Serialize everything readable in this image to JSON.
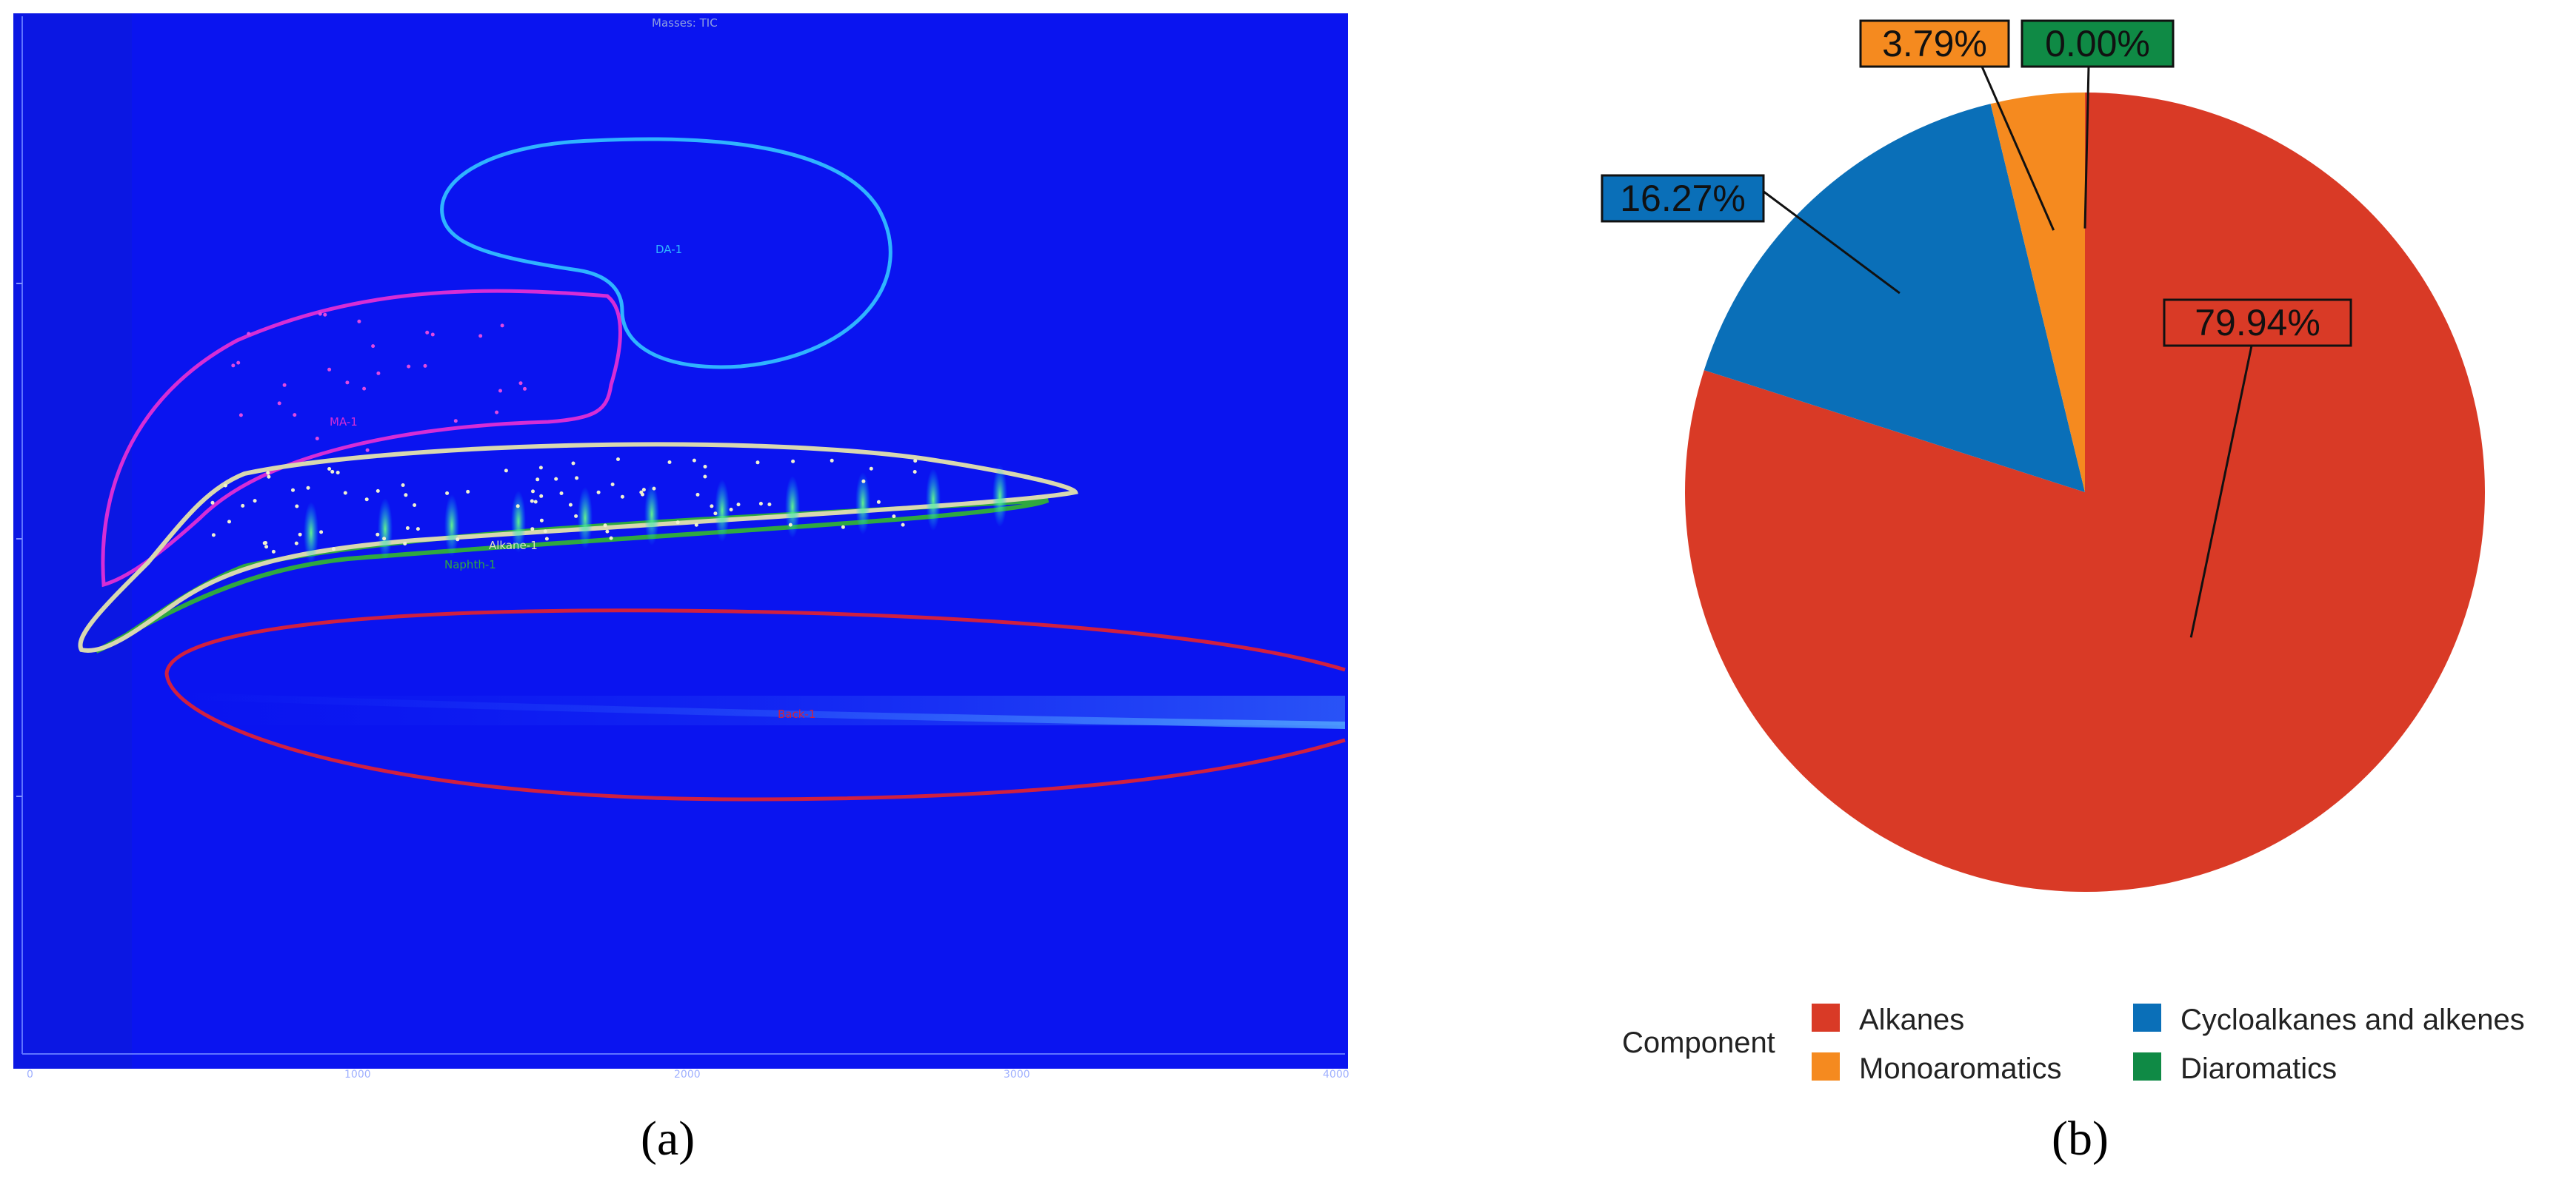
{
  "figure": {
    "caption_a": "(a)",
    "caption_b": "(b)",
    "colors": {
      "plot_background": "#0a14f0",
      "alkanes": "#d93a26",
      "cycloalkanes": "#0a6fb8",
      "monoaromatics": "#f58a1f",
      "diaromatics": "#0f8a45"
    }
  },
  "chromatogram": {
    "title": "Masses: TIC",
    "x_ticks": [
      "0",
      "1000",
      "2000",
      "3000",
      "4000"
    ],
    "regions": [
      {
        "name": "DA-1",
        "color": "#2fb4ff"
      },
      {
        "name": "MA-1",
        "color": "#d62dd6"
      },
      {
        "name": "Alkane-1",
        "color": "#d8d8b0"
      },
      {
        "name": "Naphth-1",
        "color": "#2fa840"
      },
      {
        "name": "Back-1",
        "color": "#d02040"
      }
    ]
  },
  "chart_data": {
    "type": "pie",
    "title": "",
    "legend_title": "Component",
    "legend_position": "bottom",
    "slices": [
      {
        "name": "Alkanes",
        "value": 79.94,
        "label": "79.94%",
        "color": "#d93a26"
      },
      {
        "name": "Cycloalkanes and alkenes",
        "value": 16.27,
        "label": "16.27%",
        "color": "#0a6fb8"
      },
      {
        "name": "Monoaromatics",
        "value": 3.79,
        "label": "3.79%",
        "color": "#f58a1f"
      },
      {
        "name": "Diaromatics",
        "value": 0.0,
        "label": "0.00%",
        "color": "#0f8a45"
      }
    ],
    "legend": [
      {
        "name": "Alkanes",
        "color": "#d93a26"
      },
      {
        "name": "Cycloalkanes and alkenes",
        "color": "#0a6fb8"
      },
      {
        "name": "Monoaromatics",
        "color": "#f58a1f"
      },
      {
        "name": "Diaromatics",
        "color": "#0f8a45"
      }
    ]
  }
}
